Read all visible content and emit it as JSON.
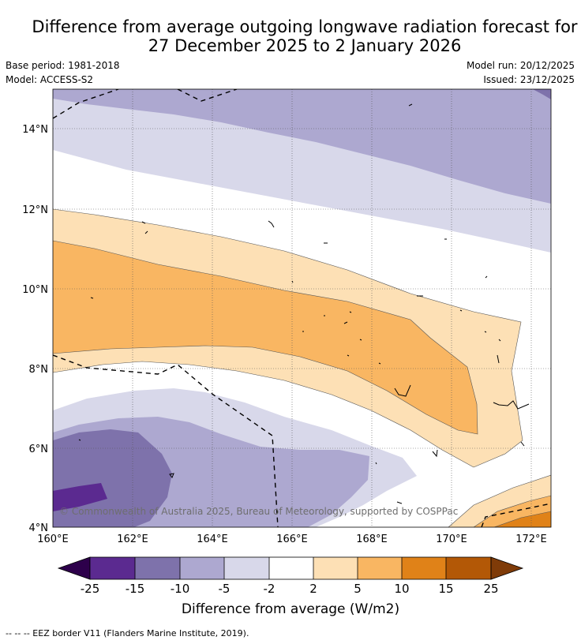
{
  "title": {
    "line1": "Difference from average outgoing longwave radiation forecast for",
    "line2": "27 December 2025 to 2 January 2026"
  },
  "meta": {
    "base_period": "Base period: 1981-2018",
    "model": "Model: ACCESS-S2",
    "model_run": "Model run: 20/12/2025",
    "issued": "Issued: 23/12/2025"
  },
  "map": {
    "lon_ticks": [
      "160°E",
      "162°E",
      "164°E",
      "166°E",
      "168°E",
      "170°E",
      "172°E"
    ],
    "lat_ticks": [
      "14°N",
      "12°N",
      "10°N",
      "8°N",
      "6°N",
      "4°N"
    ],
    "copyright": "© Commonwealth of Australia 2025, Bureau of Meteorology, supported by COSPPac"
  },
  "colorbar": {
    "labels": [
      "-25",
      "-15",
      "-10",
      "-5",
      "-2",
      "2",
      "5",
      "10",
      "15",
      "25"
    ],
    "colors": [
      "#5b2a90",
      "#7e72ab",
      "#ada8d0",
      "#d8d8ea",
      "#ffffff",
      "#fde0b5",
      "#f9b662",
      "#e08218",
      "#b35806"
    ],
    "under_color": "#2d004b",
    "over_color": "#7f3b08",
    "title": "Difference from average (W/m2)"
  },
  "footnote": "--  --  -- EEZ border V11 (Flanders Marine Institute, 2019)."
}
